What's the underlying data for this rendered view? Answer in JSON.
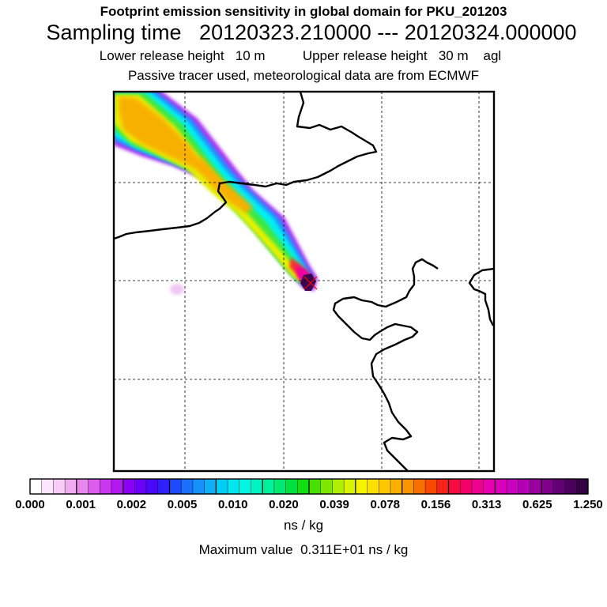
{
  "header": {
    "title_line1": "Footprint emission sensitivity in global domain for PKU_201203",
    "sampling_label": "Sampling time",
    "sampling_start": "20120323.210000",
    "sampling_separator": "---",
    "sampling_end": "20120324.000000",
    "lower_release_label": "Lower release height",
    "lower_release_value": "10 m",
    "upper_release_label": "Upper release height",
    "upper_release_value": "30 m",
    "height_reference": "agl",
    "description": "Passive tracer used, meteorological data are from ECMWF"
  },
  "legend": {
    "tick_labels": [
      "0.000",
      "0.001",
      "0.002",
      "0.005",
      "0.010",
      "0.020",
      "0.039",
      "0.078",
      "0.156",
      "0.313",
      "0.625",
      "1.250"
    ],
    "colors": [
      "#ffffff",
      "#fbe6fb",
      "#f7ccf7",
      "#efadef",
      "#e888ee",
      "#dc5ceb",
      "#c937ee",
      "#b318f0",
      "#8c00f4",
      "#6a00f8",
      "#4a08fa",
      "#2e20fb",
      "#1e4afb",
      "#1a6ffb",
      "#1690fb",
      "#10aef7",
      "#00ccf4",
      "#00e8ee",
      "#00f6e0",
      "#00f4c2",
      "#00f09c",
      "#00ea70",
      "#00e040",
      "#10de10",
      "#48e000",
      "#80e800",
      "#b0ee00",
      "#d8f400",
      "#f6f400",
      "#fee000",
      "#fec800",
      "#fcb000",
      "#fa9400",
      "#f87000",
      "#f64a00",
      "#f42418",
      "#f40c40",
      "#f40068",
      "#f00090",
      "#e800b0",
      "#dc00bc",
      "#cc00c0",
      "#b400b4",
      "#9c00a0",
      "#80008c",
      "#640076",
      "#4c005e",
      "#340044"
    ],
    "units": "ns / kg",
    "max_label": "Maximum value",
    "max_value": "0.311E+01",
    "max_units": "ns / kg"
  },
  "map": {
    "coastline_color": "#000000",
    "grid_color": "#000000",
    "release_marker_color": "#ff0000",
    "plume_colors": {
      "outer": "#b030f0",
      "blue": "#2090ff",
      "cyan": "#00f0f0",
      "green": "#40e840",
      "yellow": "#e8f000",
      "orange": "#f8b000",
      "red": "#f83030",
      "magenta": "#f000a0",
      "core": "#400050"
    }
  }
}
